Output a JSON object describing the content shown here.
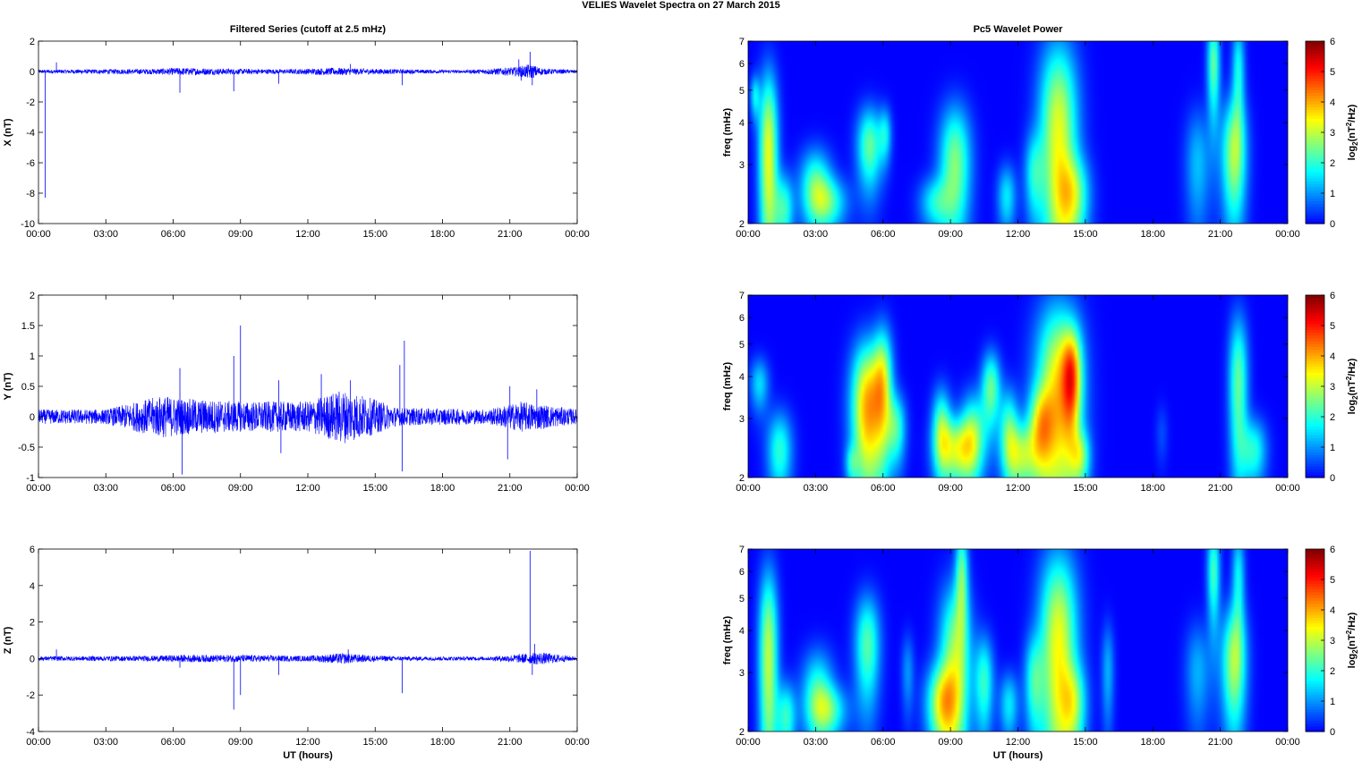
{
  "figure": {
    "title": "VELIES Wavelet Spectra on 27 March      2015"
  },
  "chart_data": [
    {
      "type": "line",
      "panel": "x-filtered",
      "title": "Filtered Series (cutoff at 2.5 mHz)",
      "xlabel": "",
      "ylabel": "X (nT)",
      "xlim": [
        0,
        24
      ],
      "ylim": [
        -10,
        2
      ],
      "xticks": [
        "00:00",
        "03:00",
        "06:00",
        "09:00",
        "12:00",
        "15:00",
        "18:00",
        "21:00",
        "00:00"
      ],
      "yticks": [
        2,
        0,
        -2,
        -4,
        -6,
        -8,
        -10
      ],
      "series": [
        {
          "color": "#0000ff",
          "baseline": 0,
          "noise_envelope": [
            [
              0,
              0.12
            ],
            [
              5,
              0.18
            ],
            [
              6.3,
              0.25
            ],
            [
              9,
              0.18
            ],
            [
              11,
              0.15
            ],
            [
              13.3,
              0.25
            ],
            [
              14.5,
              0.2
            ],
            [
              16,
              0.15
            ],
            [
              19,
              0.1
            ],
            [
              21.3,
              0.3
            ],
            [
              21.9,
              0.5
            ],
            [
              22.5,
              0.2
            ],
            [
              24,
              0.1
            ]
          ],
          "spikes": [
            [
              0.3,
              -8.3
            ],
            [
              0.8,
              0.6
            ],
            [
              6.3,
              -1.4
            ],
            [
              8.7,
              -1.3
            ],
            [
              10.7,
              -0.8
            ],
            [
              13.9,
              0.5
            ],
            [
              16.2,
              -0.9
            ],
            [
              21.4,
              0.8
            ],
            [
              21.5,
              -0.6
            ],
            [
              21.9,
              1.3
            ],
            [
              22.0,
              -0.9
            ]
          ]
        }
      ]
    },
    {
      "type": "line",
      "panel": "y-filtered",
      "title": "",
      "xlabel": "",
      "ylabel": "Y (nT)",
      "xlim": [
        0,
        24
      ],
      "ylim": [
        -1,
        2
      ],
      "xticks": [
        "00:00",
        "03:00",
        "06:00",
        "09:00",
        "12:00",
        "15:00",
        "18:00",
        "21:00",
        "00:00"
      ],
      "yticks": [
        2,
        1.5,
        1,
        0.5,
        0,
        -0.5,
        -1
      ],
      "series": [
        {
          "color": "#0000ff",
          "baseline": 0,
          "noise_envelope": [
            [
              0,
              0.12
            ],
            [
              3,
              0.12
            ],
            [
              5.5,
              0.35
            ],
            [
              6.5,
              0.3
            ],
            [
              9,
              0.25
            ],
            [
              12,
              0.25
            ],
            [
              13.5,
              0.45
            ],
            [
              14.5,
              0.35
            ],
            [
              16,
              0.15
            ],
            [
              20,
              0.12
            ],
            [
              21.5,
              0.25
            ],
            [
              22.5,
              0.2
            ],
            [
              24,
              0.12
            ]
          ],
          "spikes": [
            [
              6.3,
              0.8
            ],
            [
              6.4,
              -0.95
            ],
            [
              8.7,
              1.0
            ],
            [
              9.0,
              1.5
            ],
            [
              10.7,
              0.6
            ],
            [
              10.8,
              -0.6
            ],
            [
              12.6,
              0.7
            ],
            [
              13.9,
              0.6
            ],
            [
              16.1,
              0.85
            ],
            [
              16.2,
              -0.9
            ],
            [
              16.3,
              1.25
            ],
            [
              20.9,
              -0.7
            ],
            [
              21.0,
              0.5
            ],
            [
              22.2,
              0.45
            ]
          ]
        }
      ]
    },
    {
      "type": "line",
      "panel": "z-filtered",
      "title": "",
      "xlabel": "UT (hours)",
      "ylabel": "Z (nT)",
      "xlim": [
        0,
        24
      ],
      "ylim": [
        -4,
        6
      ],
      "xticks": [
        "00:00",
        "03:00",
        "06:00",
        "09:00",
        "12:00",
        "15:00",
        "18:00",
        "21:00",
        "00:00"
      ],
      "yticks": [
        6,
        4,
        2,
        0,
        -2,
        -4
      ],
      "series": [
        {
          "color": "#0000ff",
          "baseline": 0,
          "noise_envelope": [
            [
              0,
              0.12
            ],
            [
              5,
              0.15
            ],
            [
              6.3,
              0.2
            ],
            [
              9,
              0.2
            ],
            [
              12,
              0.15
            ],
            [
              13.5,
              0.3
            ],
            [
              14.5,
              0.2
            ],
            [
              16,
              0.12
            ],
            [
              20,
              0.1
            ],
            [
              21.5,
              0.25
            ],
            [
              22.3,
              0.35
            ],
            [
              24,
              0.1
            ]
          ],
          "spikes": [
            [
              0.8,
              0.5
            ],
            [
              6.3,
              -0.5
            ],
            [
              8.7,
              -2.8
            ],
            [
              9.0,
              -2.0
            ],
            [
              10.7,
              -0.9
            ],
            [
              13.8,
              0.5
            ],
            [
              16.2,
              -1.9
            ],
            [
              21.9,
              5.9
            ],
            [
              22.0,
              -0.9
            ],
            [
              22.1,
              0.8
            ]
          ]
        }
      ]
    },
    {
      "type": "heatmap",
      "panel": "x-wavelet",
      "title": "Pc5 Wavelet Power",
      "xlabel": "",
      "ylabel": "freq (mHz)",
      "colorbar_label": "log2(nT2/Hz)",
      "colorbar_ticks": [
        0,
        1,
        2,
        3,
        4,
        5,
        6
      ],
      "clim": [
        0,
        6
      ],
      "xlim": [
        0,
        24
      ],
      "ylim": [
        2,
        7
      ],
      "yscale": "log",
      "xticks": [
        "00:00",
        "03:00",
        "06:00",
        "09:00",
        "12:00",
        "15:00",
        "18:00",
        "21:00",
        "00:00"
      ],
      "yticks": [
        2,
        3,
        4,
        5,
        6,
        7
      ],
      "blobs": [
        [
          0.3,
          4.8,
          0.15,
          0.5,
          1.5
        ],
        [
          0.9,
          3.2,
          0.3,
          1.6,
          3.3
        ],
        [
          1.6,
          2.2,
          0.3,
          0.4,
          2.0
        ],
        [
          3.0,
          2.6,
          0.5,
          0.5,
          2.2
        ],
        [
          3.6,
          2.3,
          0.6,
          0.3,
          1.8
        ],
        [
          5.4,
          3.4,
          0.4,
          0.7,
          2.4
        ],
        [
          6.1,
          3.7,
          0.2,
          0.5,
          1.4
        ],
        [
          8.3,
          2.3,
          0.5,
          0.3,
          1.6
        ],
        [
          9.2,
          3.0,
          0.5,
          1.0,
          2.6
        ],
        [
          11.5,
          2.4,
          0.3,
          0.4,
          1.6
        ],
        [
          12.7,
          2.8,
          0.3,
          0.6,
          1.5
        ],
        [
          13.8,
          3.6,
          0.6,
          2.2,
          3.3
        ],
        [
          14.5,
          2.4,
          0.5,
          0.5,
          2.0
        ],
        [
          20.0,
          3.0,
          0.4,
          0.9,
          1.3
        ],
        [
          20.7,
          6.0,
          0.2,
          1.5,
          2.4
        ],
        [
          21.6,
          3.2,
          0.4,
          1.0,
          2.8
        ],
        [
          21.8,
          5.8,
          0.2,
          1.4,
          1.8
        ]
      ],
      "note_blob_format": "[time_h, freq_mHz, time_width_h, freq_width_mHz, peak_log2_power]"
    },
    {
      "type": "heatmap",
      "panel": "y-wavelet",
      "title": "",
      "xlabel": "",
      "ylabel": "freq (mHz)",
      "colorbar_label": "log2(nT2/Hz)",
      "colorbar_ticks": [
        0,
        1,
        2,
        3,
        4,
        5,
        6
      ],
      "clim": [
        0,
        6
      ],
      "xlim": [
        0,
        24
      ],
      "ylim": [
        2,
        7
      ],
      "yscale": "log",
      "xticks": [
        "00:00",
        "03:00",
        "06:00",
        "09:00",
        "12:00",
        "15:00",
        "18:00",
        "21:00",
        "00:00"
      ],
      "yticks": [
        2,
        3,
        4,
        5,
        6,
        7
      ],
      "blobs": [
        [
          0.5,
          3.8,
          0.3,
          0.5,
          1.5
        ],
        [
          1.4,
          2.4,
          0.4,
          0.5,
          2.0
        ],
        [
          4.6,
          2.2,
          0.2,
          0.2,
          1.2
        ],
        [
          5.3,
          3.2,
          0.5,
          1.2,
          4.0
        ],
        [
          6.0,
          3.8,
          0.3,
          1.2,
          2.6
        ],
        [
          6.6,
          2.8,
          0.3,
          0.5,
          2.0
        ],
        [
          8.6,
          2.8,
          0.3,
          0.6,
          2.3
        ],
        [
          9.3,
          2.4,
          0.6,
          0.4,
          2.8
        ],
        [
          10.0,
          2.7,
          0.4,
          0.6,
          2.2
        ],
        [
          10.8,
          3.7,
          0.3,
          0.7,
          2.4
        ],
        [
          11.6,
          2.8,
          0.3,
          0.6,
          2.0
        ],
        [
          12.1,
          2.3,
          0.5,
          0.4,
          2.5
        ],
        [
          13.0,
          2.8,
          0.4,
          0.6,
          2.3
        ],
        [
          13.8,
          3.5,
          0.7,
          2.0,
          3.6
        ],
        [
          14.4,
          4.0,
          0.3,
          1.0,
          2.8
        ],
        [
          14.8,
          2.3,
          0.3,
          0.3,
          1.8
        ],
        [
          18.4,
          2.7,
          0.2,
          0.4,
          0.5
        ],
        [
          21.8,
          3.8,
          0.3,
          1.5,
          2.4
        ],
        [
          22.5,
          2.4,
          0.4,
          0.4,
          1.9
        ]
      ]
    },
    {
      "type": "heatmap",
      "panel": "z-wavelet",
      "title": "",
      "xlabel": "UT (hours)",
      "ylabel": "freq (mHz)",
      "colorbar_label": "log2(nT2/Hz)",
      "colorbar_ticks": [
        0,
        1,
        2,
        3,
        4,
        5,
        6
      ],
      "clim": [
        0,
        6
      ],
      "xlim": [
        0,
        24
      ],
      "ylim": [
        2,
        7
      ],
      "yscale": "log",
      "xticks": [
        "00:00",
        "03:00",
        "06:00",
        "09:00",
        "12:00",
        "15:00",
        "18:00",
        "21:00",
        "00:00"
      ],
      "yticks": [
        2,
        3,
        4,
        5,
        6,
        7
      ],
      "blobs": [
        [
          0.9,
          3.3,
          0.3,
          1.8,
          3.0
        ],
        [
          1.7,
          2.2,
          0.3,
          0.4,
          2.0
        ],
        [
          3.1,
          2.6,
          0.5,
          0.6,
          2.0
        ],
        [
          3.6,
          2.3,
          0.6,
          0.3,
          1.8
        ],
        [
          5.3,
          3.6,
          0.4,
          1.0,
          2.3
        ],
        [
          7.1,
          3.0,
          0.2,
          0.6,
          1.0
        ],
        [
          8.6,
          2.4,
          0.5,
          0.5,
          2.7
        ],
        [
          9.2,
          3.2,
          0.5,
          1.5,
          2.8
        ],
        [
          9.5,
          6.0,
          0.2,
          1.5,
          2.2
        ],
        [
          10.5,
          2.8,
          0.3,
          0.7,
          2.0
        ],
        [
          11.6,
          2.4,
          0.3,
          0.4,
          1.6
        ],
        [
          12.7,
          2.8,
          0.3,
          0.7,
          1.7
        ],
        [
          13.8,
          3.5,
          0.6,
          2.2,
          3.4
        ],
        [
          14.5,
          2.4,
          0.4,
          0.5,
          1.8
        ],
        [
          16.0,
          3.0,
          0.2,
          0.8,
          1.2
        ],
        [
          20.0,
          3.0,
          0.4,
          0.8,
          1.2
        ],
        [
          20.7,
          6.0,
          0.2,
          1.5,
          2.2
        ],
        [
          21.6,
          3.2,
          0.4,
          1.0,
          2.8
        ],
        [
          21.8,
          5.8,
          0.2,
          1.4,
          1.7
        ]
      ]
    }
  ]
}
